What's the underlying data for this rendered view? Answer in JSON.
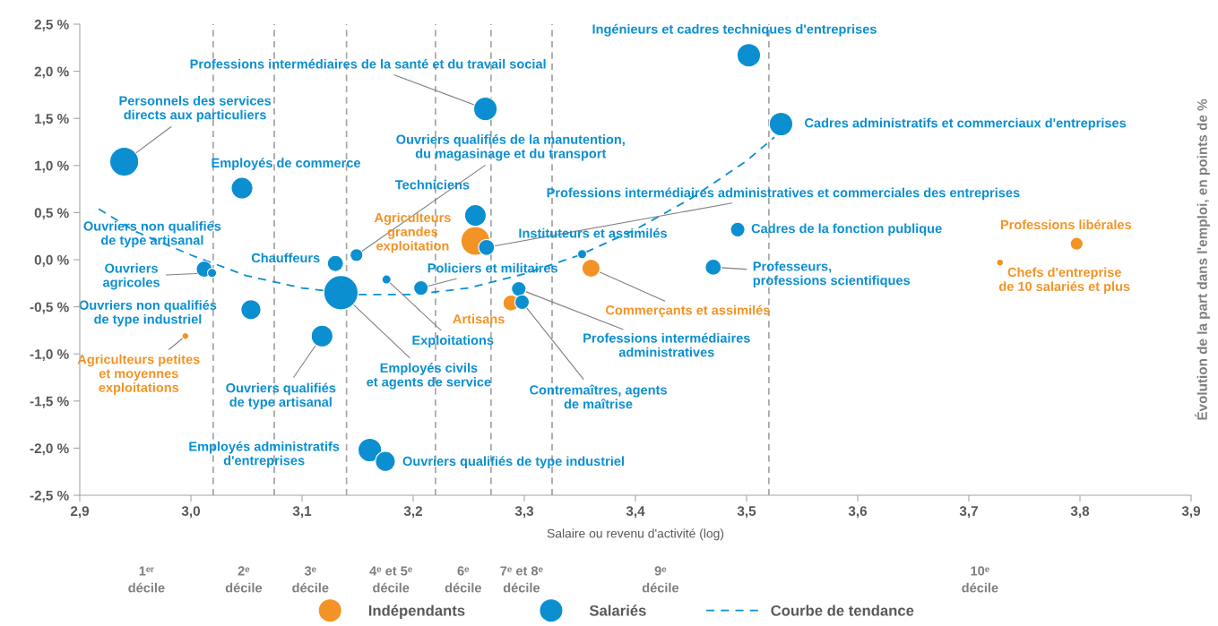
{
  "chart_data": {
    "type": "bubble",
    "xlabel": "Salaire ou revenu d'activité (log)",
    "ylabel": "Évolution de la part dans l'emploi, en points de %",
    "xlim": [
      2.9,
      3.9
    ],
    "xticks": [
      {
        "value": 2.9,
        "label": "2,9"
      },
      {
        "value": 3.0,
        "label": "3,0"
      },
      {
        "value": 3.1,
        "label": "3,1"
      },
      {
        "value": 3.2,
        "label": "3,2"
      },
      {
        "value": 3.3,
        "label": "3,3"
      },
      {
        "value": 3.4,
        "label": "3,4"
      },
      {
        "value": 3.5,
        "label": "3,5"
      },
      {
        "value": 3.6,
        "label": "3,6"
      },
      {
        "value": 3.7,
        "label": "3,7"
      },
      {
        "value": 3.8,
        "label": "3,8"
      },
      {
        "value": 3.9,
        "label": "3,9"
      }
    ],
    "ylim": [
      -2.5,
      2.5
    ],
    "yticks": [
      {
        "value": -2.5,
        "label": "-2,5 %"
      },
      {
        "value": -2.0,
        "label": "-2,0 %"
      },
      {
        "value": -1.5,
        "label": "-1,5 %"
      },
      {
        "value": -1.0,
        "label": "-1,0 %"
      },
      {
        "value": -0.5,
        "label": "-0,5 %"
      },
      {
        "value": 0.0,
        "label": "0,0 %"
      },
      {
        "value": 0.5,
        "label": "0,5 %"
      },
      {
        "value": 1.0,
        "label": "1,0 %"
      },
      {
        "value": 1.5,
        "label": "1,5 %"
      },
      {
        "value": 2.0,
        "label": "2,0 %"
      },
      {
        "value": 2.5,
        "label": "2,5 %"
      }
    ],
    "grid": false,
    "legend": "bottom",
    "series": [
      {
        "name": "Indépendants",
        "marker": "circle",
        "color": "#f39325",
        "x": [
          3.256,
          3.288,
          3.36,
          3.797,
          3.728,
          2.995
        ],
        "values": [
          0.2,
          -0.46,
          -0.09,
          0.17,
          -0.03,
          -0.81
        ],
        "sizes": [
          0.71,
          0.22,
          0.28,
          0.14,
          0.04,
          0.04
        ]
      },
      {
        "name": "Salariés",
        "marker": "circle",
        "color": "#0b8fd1",
        "x": [
          2.94,
          3.046,
          3.265,
          3.502,
          3.531,
          3.256,
          3.266,
          3.352,
          3.492,
          3.47,
          3.012,
          3.019,
          3.054,
          3.13,
          3.149,
          3.135,
          3.176,
          3.207,
          3.118,
          3.161,
          3.175,
          3.295,
          3.298
        ],
        "values": [
          1.04,
          0.76,
          1.6,
          2.17,
          1.44,
          0.47,
          0.13,
          0.06,
          0.32,
          -0.08,
          -0.1,
          -0.14,
          -0.53,
          -0.04,
          0.05,
          -0.35,
          -0.21,
          -0.3,
          -0.81,
          -2.02,
          -2.14,
          -0.31,
          -0.45
        ],
        "sizes": [
          0.71,
          0.4,
          0.47,
          0.47,
          0.47,
          0.4,
          0.22,
          0.07,
          0.18,
          0.22,
          0.22,
          0.07,
          0.34,
          0.22,
          0.14,
          1,
          0.07,
          0.18,
          0.4,
          0.47,
          0.34,
          0.18,
          0.18
        ]
      },
      {
        "name": "Courbe de tendance",
        "type": "line",
        "marker": "none",
        "color": "#0b8fd1",
        "line_style": "dashed",
        "x": [
          2.917,
          2.95,
          3.0,
          3.05,
          3.1,
          3.15,
          3.2,
          3.25,
          3.3,
          3.35,
          3.4,
          3.45,
          3.5,
          3.525
        ],
        "values": [
          0.54,
          0.3,
          0.05,
          -0.17,
          -0.3,
          -0.37,
          -0.37,
          -0.3,
          -0.15,
          0.05,
          0.32,
          0.65,
          1.05,
          1.3
        ]
      }
    ],
    "ref_lines": [
      {
        "axis": "x",
        "value": 3.02,
        "color": "#a6a6a6",
        "line_style": "dashed"
      },
      {
        "axis": "x",
        "value": 3.075,
        "color": "#a6a6a6",
        "line_style": "dashed"
      },
      {
        "axis": "x",
        "value": 3.14,
        "color": "#a6a6a6",
        "line_style": "dashed"
      },
      {
        "axis": "x",
        "value": 3.22,
        "color": "#a6a6a6",
        "line_style": "dashed"
      },
      {
        "axis": "x",
        "value": 3.27,
        "color": "#a6a6a6",
        "line_style": "dashed"
      },
      {
        "axis": "x",
        "value": 3.325,
        "color": "#a6a6a6",
        "line_style": "dashed"
      },
      {
        "axis": "x",
        "value": 3.52,
        "color": "#a6a6a6",
        "line_style": "dashed"
      }
    ],
    "annotations": [
      "1ᵉʳ\ndécile",
      "2ᵉ\ndécile",
      "3ᵉ\ndécile",
      "4ᵉ et 5ᵉ\ndécile",
      "6ᵉ\ndécile",
      "7ᵉ et 8ᵉ\ndécile",
      "9ᵉ\ndécile",
      "10ᵉ\ndécile",
      {
        "text": "Personnels des services\ndirects aux particuliers",
        "x": 2.94,
        "y": 1.04
      },
      {
        "text": "Employés de commerce",
        "x": 3.046,
        "y": 0.76
      },
      {
        "text": "Professions intermédiaires de la santé et du travail social",
        "x": 3.265,
        "y": 1.6
      },
      {
        "text": "Ingénieurs et cadres techniques d'entreprises",
        "x": 3.502,
        "y": 2.17
      },
      {
        "text": "Cadres administratifs et commerciaux d'entreprises",
        "x": 3.531,
        "y": 1.44
      },
      {
        "text": "Techniciens",
        "x": 3.256,
        "y": 0.47
      },
      {
        "text": "Professions intermédiaires administratives et commerciales des entreprises",
        "x": 3.266,
        "y": 0.13
      },
      {
        "text": "Instituteurs et assimilés",
        "x": 3.352,
        "y": 0.06
      },
      {
        "text": "Cadres de la fonction publique",
        "x": 3.492,
        "y": 0.32
      },
      {
        "text": "Professeurs,\nprofessions scientifiques",
        "x": 3.47,
        "y": -0.08
      },
      {
        "text": "Ouvriers non qualifiés\nde type artisanal",
        "x": 3.012,
        "y": -0.1
      },
      {
        "text": "Ouvriers\nagricoles",
        "x": 3.019,
        "y": -0.14
      },
      {
        "text": "Ouvriers non qualifiés\nde type industriel",
        "x": 3.054,
        "y": -0.53
      },
      {
        "text": "Chauffeurs",
        "x": 3.13,
        "y": -0.04
      },
      {
        "text": "Ouvriers qualifiés de la manutention,\ndu magasinage et du transport",
        "x": 3.149,
        "y": 0.05
      },
      {
        "text": "Employés civils\net agents de service",
        "x": 3.135,
        "y": -0.35
      },
      {
        "text": "Exploitations",
        "x": 3.176,
        "y": -0.21
      },
      {
        "text": "Policiers et militaires",
        "x": 3.207,
        "y": -0.3
      },
      {
        "text": "Ouvriers qualifiés\nde type artisanal",
        "x": 3.118,
        "y": -0.81
      },
      {
        "text": "Employés administratifs\nd'entreprises",
        "x": 3.161,
        "y": -2.02
      },
      {
        "text": "Ouvriers qualifiés de type industriel",
        "x": 3.175,
        "y": -2.14
      },
      {
        "text": "Professions intermédiaires\nadministratives",
        "x": 3.295,
        "y": -0.31
      },
      {
        "text": "Contremaîtres, agents\nde maîtrise",
        "x": 3.298,
        "y": -0.45
      },
      {
        "text": "Agriculteurs\ngrandes\nexploitation",
        "x": 3.256,
        "y": 0.2
      },
      {
        "text": "Artisans",
        "x": 3.288,
        "y": -0.46
      },
      {
        "text": "Commerçants et assimilés",
        "x": 3.36,
        "y": -0.09
      },
      {
        "text": "Professions libérales",
        "x": 3.797,
        "y": 0.17
      },
      {
        "text": "Chefs d'entreprise\nde 10 salariés et plus",
        "x": 3.728,
        "y": -0.03
      },
      {
        "text": "Agriculteurs petites\net moyennes\nexploitations",
        "x": 2.995,
        "y": -0.81
      }
    ]
  }
}
